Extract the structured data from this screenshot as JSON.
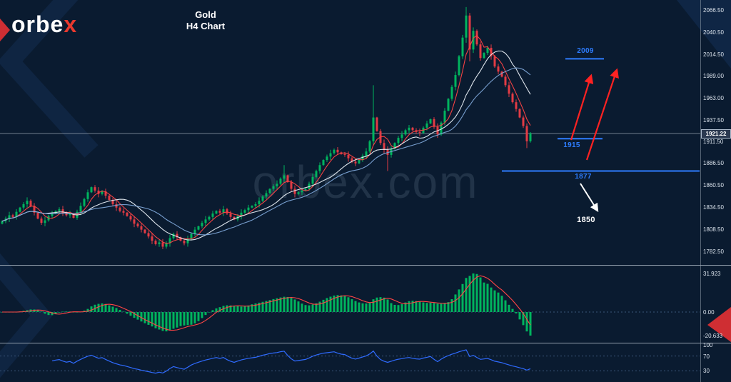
{
  "brand": {
    "logo_white": "orbe",
    "logo_accent": "x",
    "accent_color": "#e8392e"
  },
  "title": {
    "line1": "Gold",
    "line2": "H4 Chart"
  },
  "watermark": "orbex.com",
  "colors": {
    "background": "#0a1b30",
    "separator": "#93a0ae",
    "axis_text": "#dce4ed",
    "annotation_blue": "#2e7dff",
    "arrow_red": "#ff2222"
  },
  "price_axis": {
    "labels": [
      "2066.50",
      "2040.50",
      "2014.50",
      "1989.00",
      "1963.00",
      "1937.50",
      "1911.50",
      "1886.50",
      "1860.50",
      "1834.50",
      "1808.50",
      "1782.50"
    ],
    "current_price": "1921.22"
  },
  "annotations": {
    "resistance": {
      "label": "2009",
      "price": 2009,
      "color": "#2e7dff"
    },
    "support_near": {
      "label": "1915",
      "price": 1915,
      "color": "#2e7dff"
    },
    "support_far": {
      "label": "1877",
      "price": 1877,
      "color": "#2e7dff"
    },
    "bearish_target": {
      "label": "1850",
      "color": "#ffffff"
    }
  },
  "chart_data": {
    "type": "candlestick",
    "symbol": "Gold",
    "timeframe": "H4",
    "ylim": [
      1782.5,
      2066.5
    ],
    "current_price": 1921.22,
    "bull_color": "#00b45e",
    "bear_color": "#e23b44",
    "closes": [
      1818,
      1821,
      1825,
      1823,
      1829,
      1834,
      1838,
      1842,
      1836,
      1828,
      1821,
      1816,
      1819,
      1824,
      1827,
      1830,
      1832,
      1828,
      1825,
      1827,
      1822,
      1829,
      1836,
      1844,
      1852,
      1858,
      1854,
      1850,
      1853,
      1848,
      1843,
      1838,
      1834,
      1830,
      1828,
      1824,
      1820,
      1815,
      1812,
      1808,
      1804,
      1800,
      1795,
      1791,
      1793,
      1788,
      1792,
      1798,
      1803,
      1799,
      1795,
      1792,
      1797,
      1803,
      1808,
      1812,
      1816,
      1820,
      1823,
      1827,
      1830,
      1828,
      1832,
      1827,
      1823,
      1820,
      1824,
      1828,
      1831,
      1834,
      1836,
      1838,
      1842,
      1847,
      1851,
      1856,
      1859,
      1862,
      1868,
      1872,
      1864,
      1856,
      1850,
      1852,
      1854,
      1856,
      1862,
      1870,
      1877,
      1884,
      1890,
      1894,
      1898,
      1902,
      1899,
      1897,
      1896,
      1892,
      1888,
      1886,
      1890,
      1895,
      1900,
      1912,
      1940,
      1924,
      1910,
      1902,
      1896,
      1903,
      1910,
      1916,
      1920,
      1925,
      1928,
      1925,
      1923,
      1922,
      1928,
      1933,
      1938,
      1929,
      1920,
      1934,
      1948,
      1962,
      1976,
      1990,
      2012,
      2034,
      2060,
      2020,
      2042,
      2026,
      2010,
      2016,
      2022,
      2012,
      2000,
      1994,
      1988,
      1978,
      1968,
      1958,
      1950,
      1940,
      1930,
      1912,
      1921.22
    ],
    "wick_overrides": {
      "45": [
        1797,
        1785
      ],
      "79": [
        1884,
        1864
      ],
      "104": [
        1978,
        1908
      ],
      "108": [
        1906,
        1877
      ],
      "130": [
        2070,
        2028
      ],
      "131": [
        2063,
        2006
      ],
      "147": [
        1933,
        1904
      ]
    },
    "overlays": [
      {
        "name": "ma-fast",
        "type": "sma",
        "period": 5,
        "color": "#ff4545"
      },
      {
        "name": "ma-mid",
        "type": "sma",
        "period": 13,
        "color": "#e9eff6"
      },
      {
        "name": "ma-slow",
        "type": "sma",
        "period": 21,
        "color": "#7ea7d8"
      }
    ],
    "levels": {
      "resistance": 2009,
      "support_near": 1915,
      "support_far": 1877,
      "bearish_target": 1850
    },
    "indicators": [
      {
        "name": "oscillator-histogram",
        "axis_labels": [
          "31.923",
          "0.00",
          "-20.633"
        ],
        "color": "#00b45e",
        "signal_color": "#ff4545"
      },
      {
        "name": "rsi",
        "period": 14,
        "axis_labels": [
          "100",
          "70",
          "30"
        ],
        "levels": [
          70,
          30
        ],
        "color": "#2f6bff"
      }
    ]
  }
}
